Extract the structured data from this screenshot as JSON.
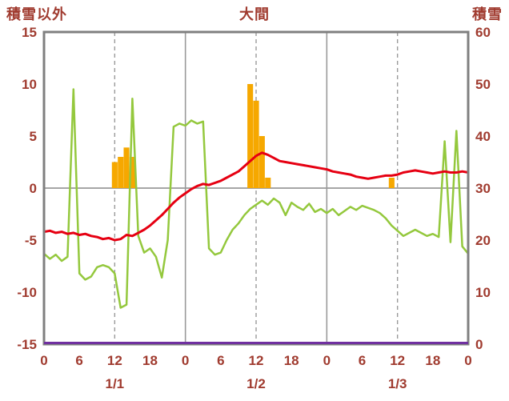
{
  "chart_data": {
    "type": "combo",
    "title": "大間",
    "left_axis_label": "積雪以外",
    "right_axis_label": "積雪",
    "x_unit": "hour",
    "x_max": 72,
    "x_tick_hours": [
      0,
      6,
      12,
      18,
      24,
      30,
      36,
      42,
      48,
      54,
      60,
      66,
      72
    ],
    "x_tick_labels": [
      "0",
      "6",
      "12",
      "18",
      "0",
      "6",
      "12",
      "18",
      "0",
      "6",
      "12",
      "18",
      "0"
    ],
    "day_labels": [
      {
        "label": "1/1",
        "hour": 12
      },
      {
        "label": "1/2",
        "hour": 36
      },
      {
        "label": "1/3",
        "hour": 60
      }
    ],
    "left_ylim": [
      -15,
      15
    ],
    "left_ticks": [
      15,
      10,
      5,
      0,
      -5,
      -10,
      -15
    ],
    "right_ylim": [
      0,
      60
    ],
    "right_ticks": [
      60,
      50,
      40,
      30,
      20,
      10,
      0
    ],
    "grid_dashed_hours": [
      12,
      36,
      60
    ],
    "grid_solid_hours": [
      24,
      48
    ],
    "zero_line_left_axis": 0,
    "colors": {
      "axis_text": "#a03b2f",
      "border": "#7f7f7f",
      "grid": "#9a9a9a",
      "bars": "#f6a800",
      "green_line": "#94c83d",
      "red_line": "#e60012",
      "purple_line": "#7030a0"
    },
    "series": [
      {
        "name": "precipitation-bars",
        "type": "bar",
        "axis": "left",
        "color": "#f6a800",
        "values": [
          0,
          0,
          0,
          0,
          0,
          0,
          0,
          0,
          0,
          0,
          0,
          0,
          2.5,
          3,
          3.9,
          3,
          0,
          0,
          0,
          0,
          0,
          0,
          0,
          0,
          0,
          0,
          0,
          0,
          0,
          0,
          0,
          0,
          0,
          0,
          0,
          10,
          8.4,
          5,
          1,
          0,
          0,
          0,
          0,
          0,
          0,
          0,
          0,
          0,
          0,
          0,
          0,
          0,
          0,
          0,
          0,
          0,
          0,
          0,
          0,
          1,
          0,
          0,
          0,
          0,
          0,
          0,
          0,
          0,
          0,
          0,
          0,
          0,
          0
        ]
      },
      {
        "name": "green-line",
        "type": "line",
        "axis": "left",
        "color": "#94c83d",
        "width": 2.5,
        "values": [
          -6.3,
          -6.8,
          -6.4,
          -7.0,
          -6.6,
          9.5,
          -8.2,
          -8.8,
          -8.5,
          -7.6,
          -7.4,
          -7.6,
          -8.2,
          -11.5,
          -11.2,
          8.6,
          -4.6,
          -6.2,
          -5.8,
          -6.6,
          -8.6,
          -5.0,
          5.9,
          6.2,
          6.0,
          6.5,
          6.2,
          6.4,
          -5.8,
          -6.4,
          -6.2,
          -5.0,
          -4.0,
          -3.4,
          -2.6,
          -2.0,
          -1.6,
          -1.2,
          -1.6,
          -1.0,
          -1.4,
          -2.6,
          -1.4,
          -1.8,
          -2.1,
          -1.5,
          -2.3,
          -2.0,
          -2.4,
          -2.0,
          -2.6,
          -2.2,
          -1.8,
          -2.1,
          -1.7,
          -1.9,
          -2.1,
          -2.4,
          -2.9,
          -3.6,
          -4.1,
          -4.6,
          -4.3,
          -4.0,
          -4.3,
          -4.6,
          -4.4,
          -4.7,
          4.5,
          -5.2,
          5.5,
          -5.6,
          -6.3
        ]
      },
      {
        "name": "temperature-red-line",
        "type": "line",
        "axis": "left",
        "color": "#e60012",
        "width": 3,
        "values": [
          -4.2,
          -4.1,
          -4.3,
          -4.2,
          -4.4,
          -4.3,
          -4.5,
          -4.4,
          -4.6,
          -4.7,
          -4.9,
          -4.8,
          -5.0,
          -4.9,
          -4.5,
          -4.6,
          -4.3,
          -4.0,
          -3.6,
          -3.1,
          -2.6,
          -2.0,
          -1.4,
          -0.9,
          -0.5,
          -0.1,
          0.2,
          0.4,
          0.3,
          0.5,
          0.7,
          1.0,
          1.3,
          1.6,
          2.1,
          2.6,
          3.1,
          3.4,
          3.2,
          2.9,
          2.6,
          2.5,
          2.4,
          2.3,
          2.2,
          2.1,
          2.0,
          1.9,
          1.8,
          1.6,
          1.5,
          1.4,
          1.3,
          1.1,
          1.0,
          0.9,
          1.0,
          1.1,
          1.2,
          1.2,
          1.3,
          1.5,
          1.6,
          1.7,
          1.6,
          1.5,
          1.4,
          1.5,
          1.6,
          1.5,
          1.5,
          1.6,
          1.5
        ]
      },
      {
        "name": "snow-depth-purple-line",
        "type": "line",
        "axis": "right",
        "color": "#7030a0",
        "width": 3,
        "constant": 0
      }
    ]
  }
}
